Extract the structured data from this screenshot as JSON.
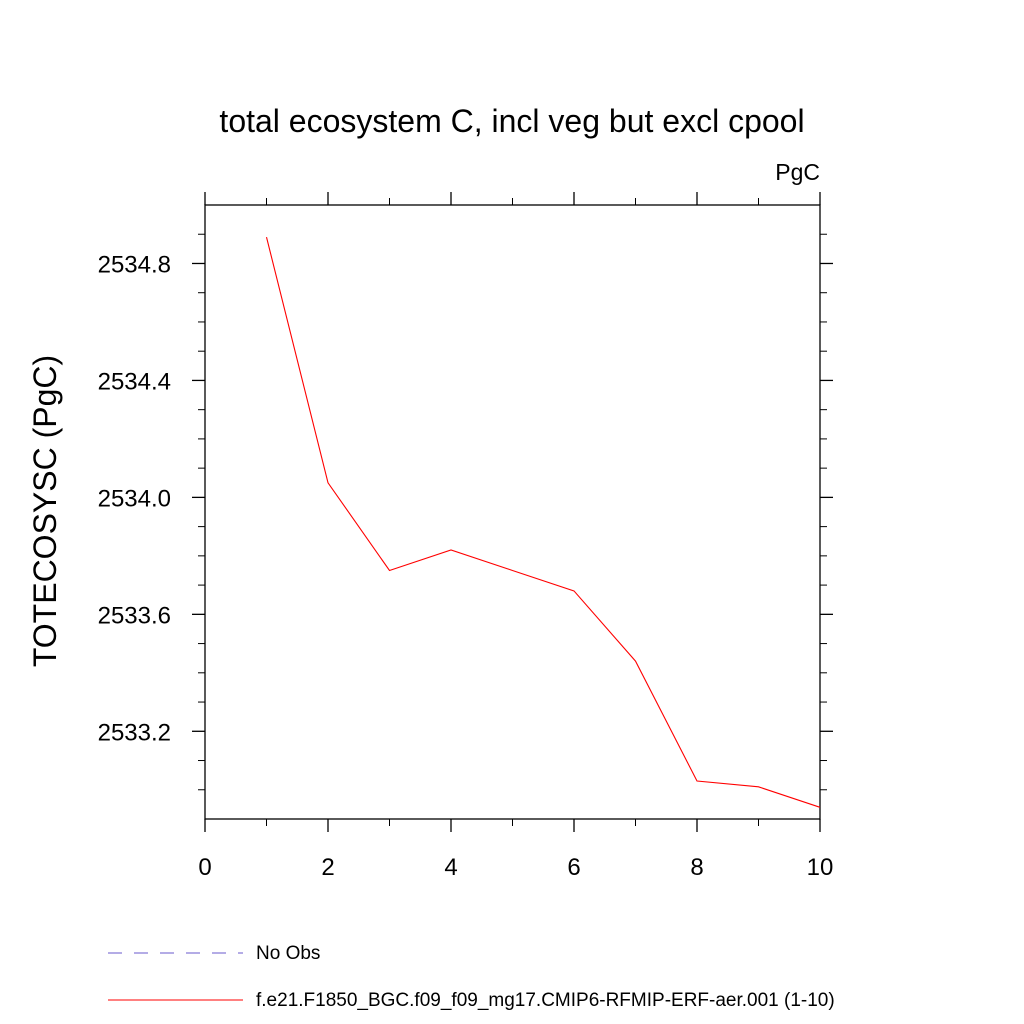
{
  "chart_data": {
    "type": "line",
    "title": "total ecosystem C, incl veg but excl cpool",
    "units_label": "PgC",
    "ylabel": "TOTECOSYSC  (PgC)",
    "xlabel": "",
    "xlim": [
      0,
      10
    ],
    "ylim": [
      2532.9,
      2535.0
    ],
    "x_ticks": [
      0,
      2,
      4,
      6,
      8,
      10
    ],
    "x_tick_labels": [
      "0",
      "2",
      "4",
      "6",
      "8",
      "10"
    ],
    "y_ticks": [
      2533.2,
      2533.6,
      2534.0,
      2534.4,
      2534.8
    ],
    "y_tick_labels": [
      "2533.2",
      "2533.6",
      "2534.0",
      "2534.4",
      "2534.8"
    ],
    "grid": false,
    "series": [
      {
        "name": "f.e21.F1850_BGC.f09_f09_mg17.CMIP6-RFMIP-ERF-aer.001 (1-10)",
        "color": "#ff0000",
        "style": "solid",
        "x": [
          1,
          2,
          3,
          4,
          5,
          6,
          7,
          8,
          9,
          10
        ],
        "values": [
          2534.89,
          2534.05,
          2533.75,
          2533.82,
          2533.75,
          2533.68,
          2533.44,
          2533.03,
          2533.01,
          2532.94
        ]
      }
    ],
    "legend": [
      {
        "label": "No Obs",
        "color": "#6a5acd",
        "style": "dashed"
      },
      {
        "label": "f.e21.F1850_BGC.f09_f09_mg17.CMIP6-RFMIP-ERF-aer.001 (1-10)",
        "color": "#ff0000",
        "style": "solid"
      }
    ],
    "legend_position": "bottom-left"
  }
}
